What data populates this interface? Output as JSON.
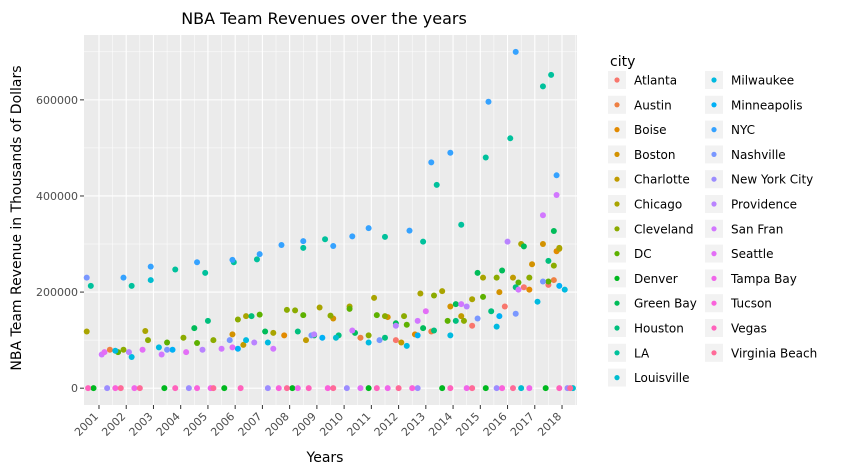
{
  "chart_data": {
    "type": "scatter",
    "title": "NBA Team Revenues over the years",
    "xlabel": "Years",
    "ylabel": "NBA Team Revenue in Thousands of Dollars",
    "xlim": [
      2000.45,
      2018.55
    ],
    "ylim": [
      -35000,
      735000
    ],
    "x_ticks": [
      "2001",
      "2002",
      "2003",
      "2004",
      "2005",
      "2006",
      "2007",
      "2008",
      "2009",
      "2010",
      "2011",
      "2012",
      "2013",
      "2014",
      "2015",
      "2016",
      "2017",
      "2018"
    ],
    "y_ticks": [
      0,
      200000,
      400000,
      600000
    ],
    "y_tick_labels": [
      "0",
      "200000",
      "400000",
      "600000"
    ],
    "grid": true,
    "legend_title": "city",
    "legend_position": "right",
    "series": [
      {
        "name": "Atlanta",
        "color": "#F8766D",
        "points": [
          [
            2011.9,
            100000
          ],
          [
            2014.7,
            130000
          ],
          [
            2015.9,
            170000
          ],
          [
            2016.6,
            210000
          ],
          [
            2017.5,
            215000
          ]
        ]
      },
      {
        "name": "Austin",
        "color": "#EE8043",
        "points": [
          [
            2001.4,
            80000
          ],
          [
            2010.6,
            105000
          ],
          [
            2013.2,
            118000
          ],
          [
            2017.7,
            225000
          ]
        ]
      },
      {
        "name": "Boise",
        "color": "#E28A00",
        "points": [
          [
            2007.8,
            110000
          ],
          [
            2012.6,
            112000
          ],
          [
            2016.8,
            205000
          ],
          [
            2017.8,
            285000
          ]
        ]
      },
      {
        "name": "Boston",
        "color": "#D39200",
        "points": [
          [
            2005.9,
            112000
          ],
          [
            2009.6,
            145000
          ],
          [
            2011.6,
            148000
          ],
          [
            2013.9,
            170000
          ],
          [
            2015.7,
            200000
          ],
          [
            2016.9,
            258000
          ],
          [
            2017.3,
            300000
          ]
        ]
      },
      {
        "name": "Charlotte",
        "color": "#C09B00",
        "points": [
          [
            2006.3,
            90000
          ],
          [
            2008.6,
            100000
          ],
          [
            2012.1,
            95000
          ],
          [
            2014.3,
            150000
          ],
          [
            2016.2,
            230000
          ],
          [
            2017.9,
            290000
          ]
        ]
      },
      {
        "name": "Chicago",
        "color": "#A9A400",
        "points": [
          [
            2000.55,
            118000
          ],
          [
            2002.7,
            119000
          ],
          [
            2006.4,
            150000
          ],
          [
            2007.4,
            115000
          ],
          [
            2009.1,
            168000
          ],
          [
            2010.2,
            170000
          ],
          [
            2011.1,
            188000
          ],
          [
            2012.8,
            197000
          ],
          [
            2013.6,
            202000
          ],
          [
            2014.7,
            185000
          ],
          [
            2015.1,
            230000
          ],
          [
            2016.5,
            300000
          ],
          [
            2017.9,
            292000
          ]
        ]
      },
      {
        "name": "Cleveland",
        "color": "#8BAB00",
        "points": [
          [
            2001.9,
            80000
          ],
          [
            2002.8,
            100000
          ],
          [
            2004.1,
            105000
          ],
          [
            2005.2,
            100000
          ],
          [
            2006.1,
            143000
          ],
          [
            2007.9,
            163000
          ],
          [
            2008.2,
            162000
          ],
          [
            2009.5,
            151000
          ],
          [
            2010.9,
            110000
          ],
          [
            2011.5,
            150000
          ],
          [
            2012.2,
            150000
          ],
          [
            2013.3,
            193000
          ],
          [
            2014.4,
            140000
          ],
          [
            2015.6,
            230000
          ],
          [
            2016.8,
            230000
          ],
          [
            2017.7,
            255000
          ]
        ]
      },
      {
        "name": "DC",
        "color": "#5DB100",
        "points": [
          [
            2001.7,
            75000
          ],
          [
            2003.5,
            95000
          ],
          [
            2004.6,
            94000
          ],
          [
            2006.9,
            153000
          ],
          [
            2008.5,
            152000
          ],
          [
            2010.2,
            165000
          ],
          [
            2011.2,
            152000
          ],
          [
            2012.3,
            132000
          ],
          [
            2013.8,
            140000
          ],
          [
            2015.1,
            190000
          ],
          [
            2016.4,
            220000
          ],
          [
            2017.5,
            222000
          ]
        ]
      },
      {
        "name": "Denver",
        "color": "#00B81F",
        "points": [
          [
            2000.8,
            0
          ],
          [
            2003.4,
            0
          ],
          [
            2005.6,
            0
          ],
          [
            2008.1,
            0
          ],
          [
            2010.9,
            0
          ],
          [
            2013.6,
            0
          ],
          [
            2015.2,
            0
          ],
          [
            2017.4,
            0
          ]
        ]
      },
      {
        "name": "Green Bay",
        "color": "#00BC59",
        "points": [
          [
            2004.5,
            125000
          ],
          [
            2007.1,
            118000
          ],
          [
            2008.9,
            110000
          ],
          [
            2010.4,
            115000
          ],
          [
            2011.9,
            135000
          ],
          [
            2012.9,
            125000
          ],
          [
            2014.1,
            175000
          ],
          [
            2014.9,
            240000
          ],
          [
            2015.8,
            245000
          ],
          [
            2016.6,
            295000
          ],
          [
            2017.7,
            327000
          ]
        ]
      },
      {
        "name": "Houston",
        "color": "#00BF7D",
        "points": [
          [
            2005.0,
            140000
          ],
          [
            2006.6,
            150000
          ],
          [
            2008.3,
            118000
          ],
          [
            2009.8,
            110000
          ],
          [
            2011.5,
            105000
          ],
          [
            2013.3,
            120000
          ],
          [
            2014.1,
            140000
          ],
          [
            2015.4,
            160000
          ],
          [
            2016.3,
            210000
          ],
          [
            2017.5,
            265000
          ]
        ]
      },
      {
        "name": "LA",
        "color": "#00C19C",
        "points": [
          [
            2000.7,
            213000
          ],
          [
            2002.2,
            213000
          ],
          [
            2003.8,
            247000
          ],
          [
            2004.9,
            240000
          ],
          [
            2005.95,
            262000
          ],
          [
            2006.8,
            268000
          ],
          [
            2008.5,
            292000
          ],
          [
            2009.3,
            310000
          ],
          [
            2011.5,
            315000
          ],
          [
            2012.9,
            305000
          ],
          [
            2013.4,
            423000
          ],
          [
            2014.3,
            340000
          ],
          [
            2015.2,
            480000
          ],
          [
            2016.1,
            520000
          ],
          [
            2017.3,
            628000
          ],
          [
            2017.6,
            652000
          ]
        ]
      },
      {
        "name": "Louisville",
        "color": "#00BDD0",
        "points": [
          [
            2002.9,
            225000
          ],
          [
            2009.7,
            105000
          ],
          [
            2016.5,
            0
          ],
          [
            2018.4,
            0
          ]
        ]
      },
      {
        "name": "Milwaukee",
        "color": "#00BAE0",
        "points": [
          [
            2001.6,
            78000
          ],
          [
            2002.2,
            65000
          ],
          [
            2003.2,
            85000
          ],
          [
            2006.4,
            100000
          ],
          [
            2007.2,
            95000
          ],
          [
            2010.9,
            95000
          ],
          [
            2012.3,
            88000
          ],
          [
            2013.9,
            110000
          ],
          [
            2015.6,
            128000
          ],
          [
            2017.1,
            180000
          ],
          [
            2018.1,
            205000
          ]
        ]
      },
      {
        "name": "Minneapolis",
        "color": "#00B0F6",
        "points": [
          [
            2003.7,
            80000
          ],
          [
            2006.1,
            82000
          ],
          [
            2009.2,
            105000
          ],
          [
            2012.7,
            110000
          ],
          [
            2015.7,
            150000
          ],
          [
            2017.9,
            213000
          ]
        ]
      },
      {
        "name": "NYC",
        "color": "#35A2FF",
        "points": [
          [
            2001.9,
            230000
          ],
          [
            2002.9,
            253000
          ],
          [
            2004.6,
            262000
          ],
          [
            2005.9,
            267000
          ],
          [
            2006.9,
            279000
          ],
          [
            2007.7,
            298000
          ],
          [
            2008.5,
            306000
          ],
          [
            2009.6,
            296000
          ],
          [
            2010.3,
            316000
          ],
          [
            2010.9,
            333000
          ],
          [
            2012.4,
            328000
          ],
          [
            2013.2,
            470000
          ],
          [
            2013.9,
            490000
          ],
          [
            2015.3,
            596000
          ],
          [
            2016.3,
            700000
          ],
          [
            2017.8,
            443000
          ]
        ]
      },
      {
        "name": "Nashville",
        "color": "#7997FF",
        "points": [
          [
            2000.55,
            230000
          ],
          [
            2003.5,
            80000
          ],
          [
            2005.8,
            100000
          ],
          [
            2008.8,
            110000
          ],
          [
            2011.3,
            100000
          ],
          [
            2014.9,
            145000
          ],
          [
            2016.3,
            155000
          ],
          [
            2017.3,
            222000
          ]
        ]
      },
      {
        "name": "New York City",
        "color": "#9C8DFF",
        "points": [
          [
            2001.3,
            0
          ],
          [
            2004.3,
            0
          ],
          [
            2007.2,
            0
          ],
          [
            2010.1,
            0
          ],
          [
            2012.7,
            0
          ],
          [
            2015.6,
            0
          ],
          [
            2018.2,
            0
          ]
        ]
      },
      {
        "name": "Providence",
        "color": "#B983FF",
        "points": [
          [
            2002.1,
            75000
          ],
          [
            2004.8,
            80000
          ],
          [
            2006.7,
            95000
          ],
          [
            2008.9,
            112000
          ],
          [
            2011.9,
            130000
          ],
          [
            2014.5,
            170000
          ],
          [
            2016.0,
            305000
          ]
        ]
      },
      {
        "name": "San Fran",
        "color": "#D277FF",
        "points": [
          [
            2001.1,
            70000
          ],
          [
            2003.3,
            70000
          ],
          [
            2005.5,
            82000
          ],
          [
            2007.4,
            82000
          ],
          [
            2010.3,
            120000
          ],
          [
            2012.7,
            140000
          ],
          [
            2014.3,
            175000
          ],
          [
            2016.4,
            205000
          ],
          [
            2017.3,
            360000
          ],
          [
            2017.8,
            402000
          ]
        ]
      },
      {
        "name": "Seattle",
        "color": "#E36EF6",
        "points": [
          [
            2001.2,
            75000
          ],
          [
            2002.6,
            80000
          ],
          [
            2004.2,
            75000
          ],
          [
            2005.9,
            85000
          ],
          [
            2010.6,
            0
          ],
          [
            2013.0,
            160000
          ]
        ]
      },
      {
        "name": "Tampa Bay",
        "color": "#F066EA",
        "points": [
          [
            2002.3,
            0
          ],
          [
            2005.1,
            0
          ],
          [
            2008.3,
            0
          ],
          [
            2011.6,
            0
          ],
          [
            2014.5,
            0
          ],
          [
            2016.8,
            0
          ]
        ]
      },
      {
        "name": "Tucson",
        "color": "#FA62DB",
        "points": [
          [
            2001.6,
            0
          ],
          [
            2004.6,
            0
          ],
          [
            2007.6,
            0
          ],
          [
            2009.4,
            0
          ],
          [
            2012.5,
            0
          ],
          [
            2015.8,
            0
          ]
        ]
      },
      {
        "name": "Vegas",
        "color": "#FF62BC",
        "points": [
          [
            2000.6,
            0
          ],
          [
            2003.8,
            0
          ],
          [
            2006.2,
            0
          ],
          [
            2008.7,
            0
          ],
          [
            2011.2,
            0
          ],
          [
            2013.9,
            0
          ],
          [
            2017.9,
            0
          ]
        ]
      },
      {
        "name": "Virginia Beach",
        "color": "#FF6A98",
        "points": [
          [
            2001.8,
            0
          ],
          [
            2002.5,
            0
          ],
          [
            2005.2,
            0
          ],
          [
            2007.9,
            0
          ],
          [
            2009.6,
            0
          ],
          [
            2012.0,
            0
          ],
          [
            2014.7,
            0
          ],
          [
            2016.2,
            0
          ],
          [
            2018.3,
            0
          ]
        ]
      }
    ]
  }
}
